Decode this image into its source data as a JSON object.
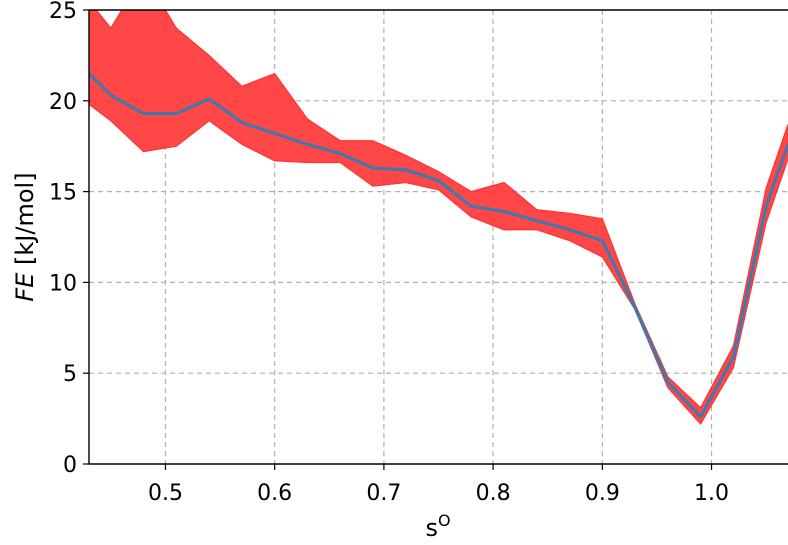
{
  "chart_data": {
    "type": "line",
    "xlabel": {
      "base": "s",
      "sup": "O"
    },
    "ylabel": {
      "italic": "FE",
      "rest": " [kJ/mol]"
    },
    "xlim": [
      0.43,
      1.07
    ],
    "ylim": [
      0,
      25
    ],
    "grid": true,
    "xticks": [
      0.5,
      0.6,
      0.7,
      0.8,
      0.9,
      1.0
    ],
    "xtick_labels": [
      "0.5",
      "0.6",
      "0.7",
      "0.8",
      "0.9",
      "1.0"
    ],
    "yticks": [
      0,
      5,
      10,
      15,
      20,
      25
    ],
    "ytick_labels": [
      "0",
      "5",
      "10",
      "15",
      "20",
      "25"
    ],
    "colors": {
      "line": "#4477aa",
      "band": "#ff3333",
      "grid": "#b0b0b0"
    },
    "series": [
      {
        "x": [
          0.43,
          0.45,
          0.48,
          0.51,
          0.54,
          0.57,
          0.6,
          0.63,
          0.66,
          0.69,
          0.72,
          0.75,
          0.78,
          0.81,
          0.84,
          0.87,
          0.9,
          0.93,
          0.96,
          0.99,
          1.02,
          1.05,
          1.07
        ],
        "y": [
          21.5,
          20.3,
          19.3,
          19.3,
          20.1,
          18.8,
          18.2,
          17.6,
          17.1,
          16.3,
          16.2,
          15.6,
          14.2,
          13.9,
          13.4,
          12.9,
          12.3,
          8.6,
          4.5,
          2.6,
          5.9,
          14.2,
          17.6
        ],
        "lower": [
          19.8,
          18.9,
          17.2,
          17.5,
          18.9,
          17.6,
          16.7,
          16.6,
          16.6,
          15.3,
          15.5,
          15.1,
          13.6,
          12.9,
          12.9,
          12.3,
          11.4,
          8.5,
          4.2,
          2.2,
          5.3,
          13.3,
          16.8
        ],
        "upper": [
          25.5,
          24.0,
          27.0,
          24.0,
          22.5,
          20.8,
          21.5,
          19.0,
          17.8,
          17.8,
          17.0,
          16.1,
          15.0,
          15.5,
          14.0,
          13.8,
          13.5,
          8.8,
          4.8,
          3.1,
          6.5,
          15.2,
          18.7
        ]
      }
    ]
  }
}
